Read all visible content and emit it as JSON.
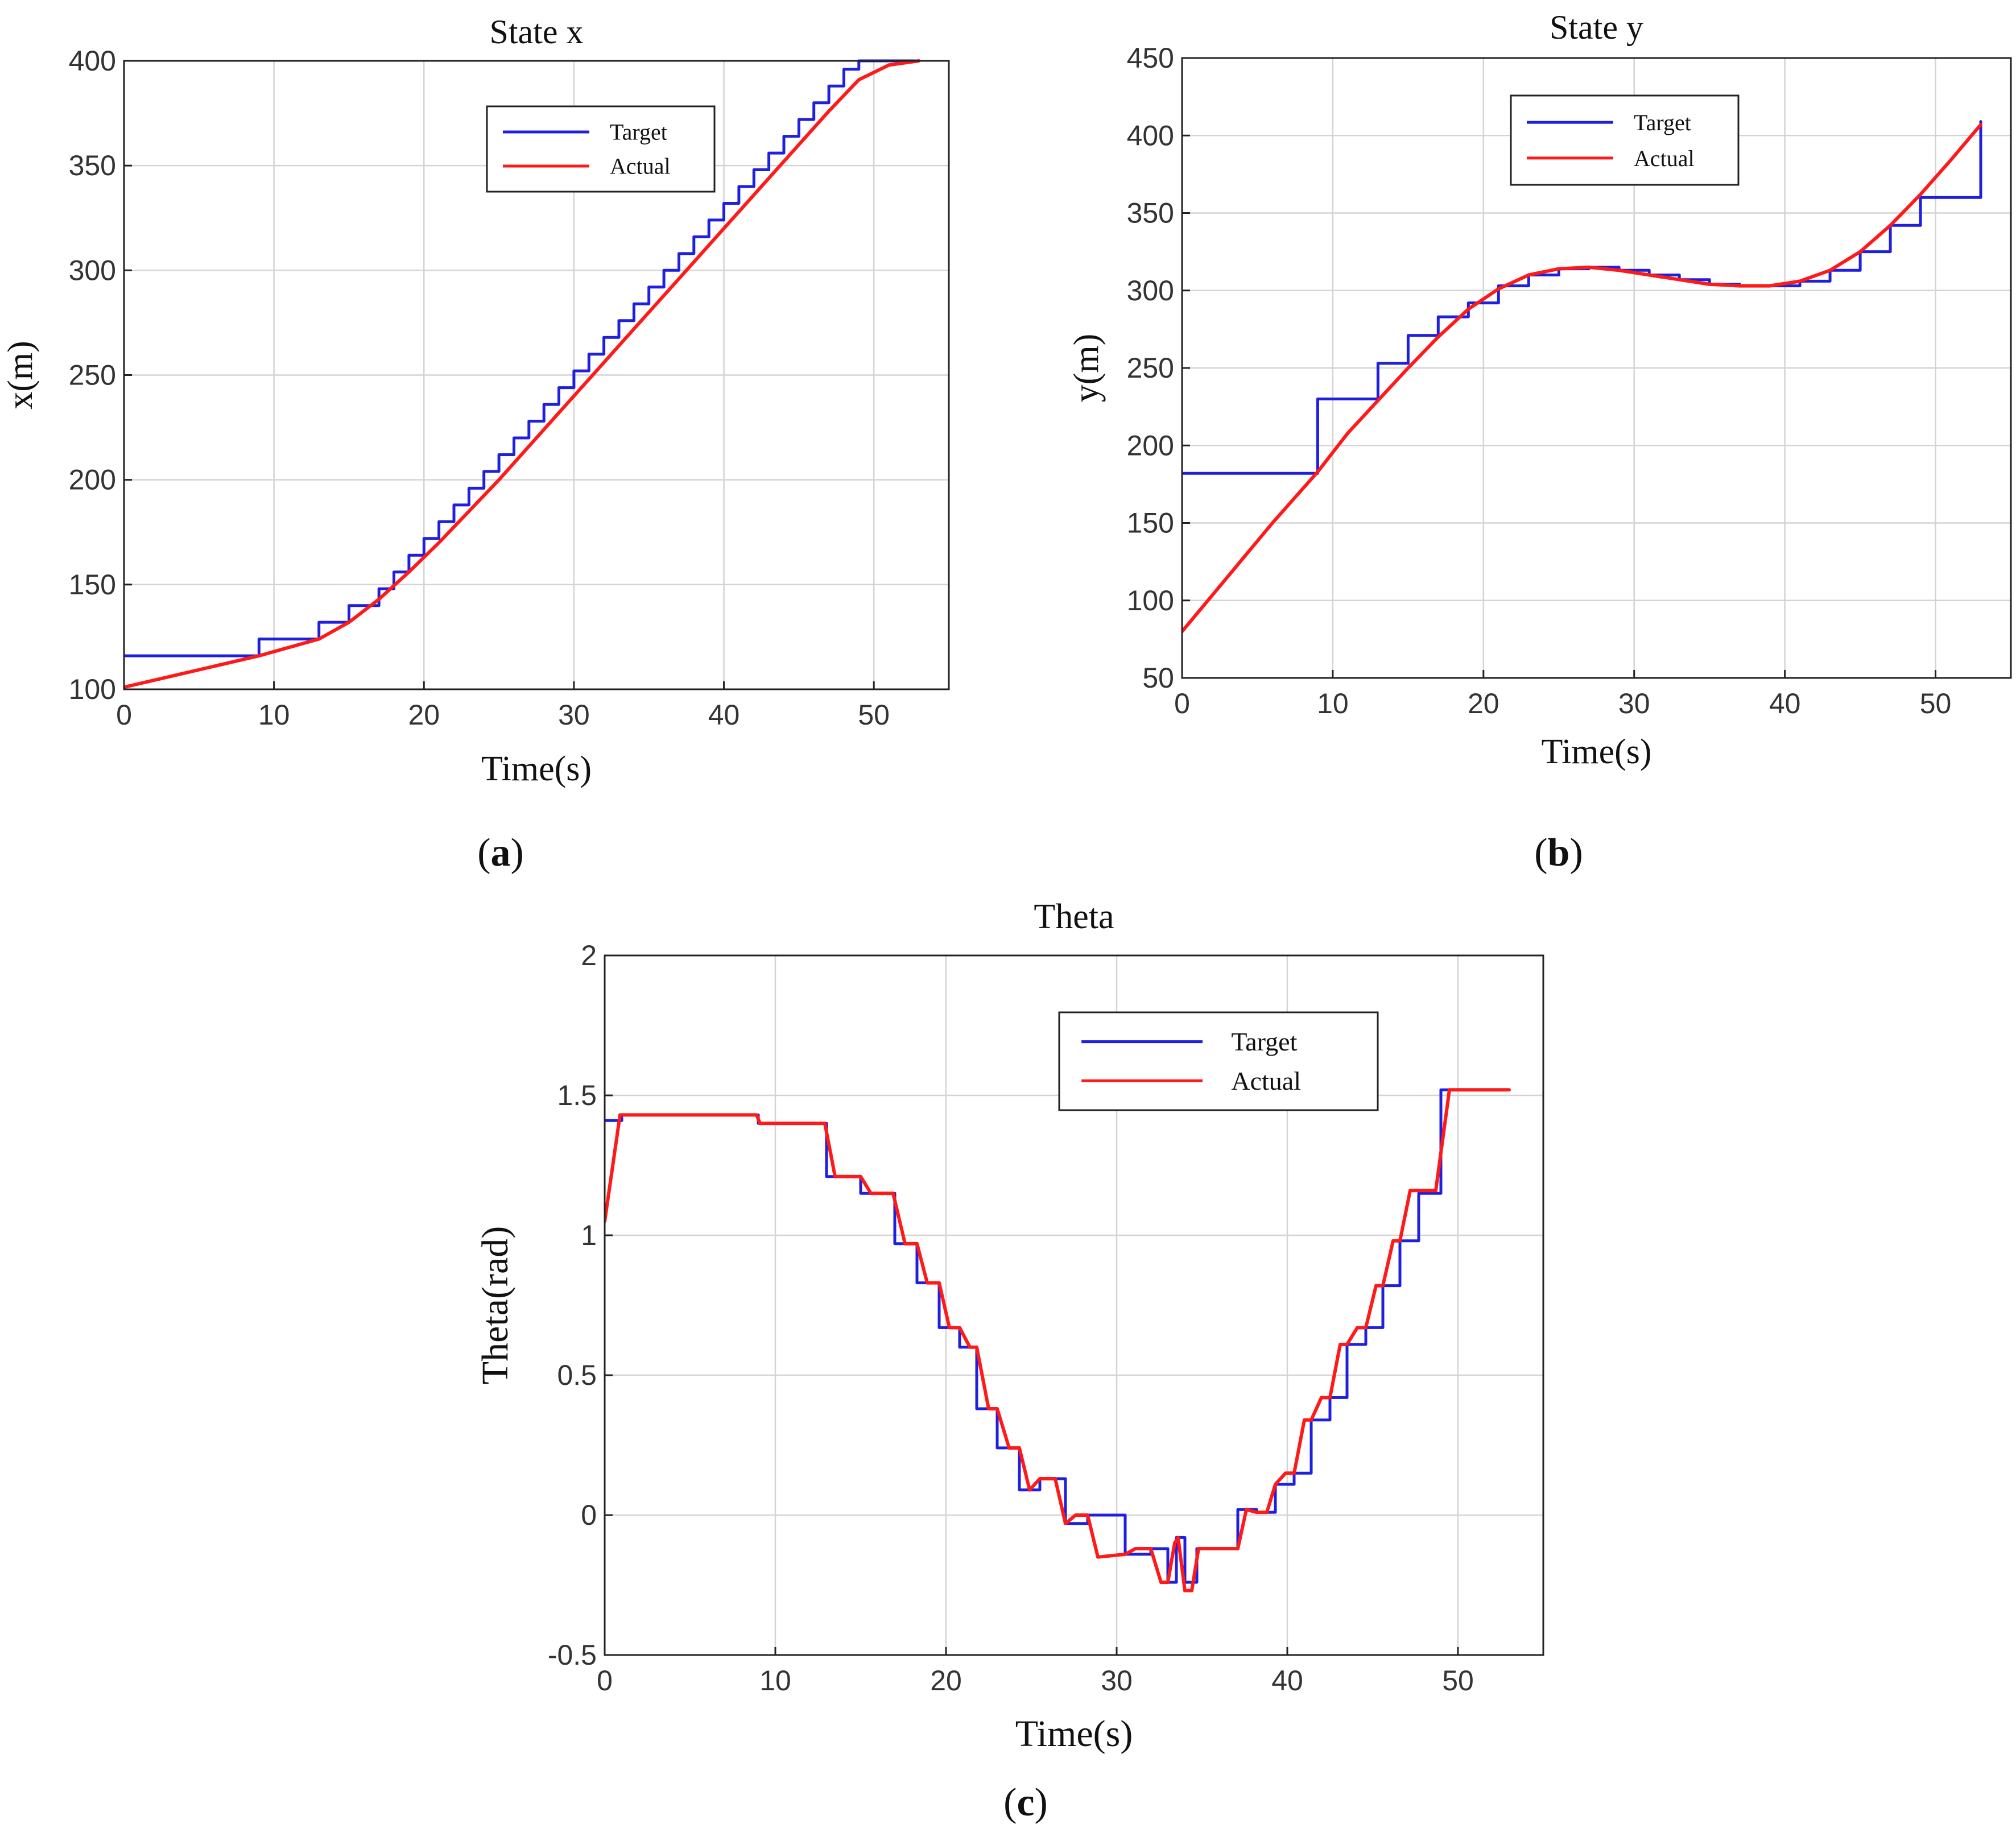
{
  "colors": {
    "target": "#1f1fe0",
    "actual": "#ff1a1a",
    "grid": "#d4d4d4",
    "axis": "#222222"
  },
  "chart_data": [
    {
      "type": "line",
      "panel_label": "a",
      "title": "State x",
      "xlabel": "Time(s)",
      "ylabel": "x(m)",
      "xlim": [
        0,
        55
      ],
      "ylim": [
        100,
        400
      ],
      "xticks": [
        "0",
        "10",
        "20",
        "30",
        "40",
        "50"
      ],
      "yticks": [
        "100",
        "150",
        "200",
        "250",
        "300",
        "350",
        "400"
      ],
      "grid": true,
      "legend": {
        "position": "top-center",
        "entries": [
          "Target",
          "Actual"
        ]
      },
      "series": [
        {
          "name": "Target",
          "step": true,
          "x": [
            0,
            9,
            13,
            15,
            17,
            18,
            19,
            20,
            21,
            22,
            23,
            24,
            25,
            26,
            27,
            28,
            29,
            30,
            31,
            32,
            33,
            34,
            35,
            36,
            37,
            38,
            39,
            40,
            41,
            42,
            43,
            44,
            45,
            46,
            47,
            48,
            49,
            50,
            53
          ],
          "y": [
            116,
            124,
            132,
            140,
            148,
            156,
            164,
            172,
            180,
            188,
            196,
            204,
            212,
            220,
            228,
            236,
            244,
            252,
            260,
            268,
            276,
            284,
            292,
            300,
            308,
            316,
            324,
            332,
            340,
            348,
            356,
            364,
            372,
            380,
            388,
            396,
            400,
            400,
            400
          ]
        },
        {
          "name": "Actual",
          "x": [
            0,
            3,
            6,
            9,
            11,
            13,
            15,
            17,
            19,
            21,
            23,
            25,
            27,
            29,
            31,
            33,
            35,
            37,
            39,
            41,
            43,
            45,
            47,
            49,
            51,
            53
          ],
          "y": [
            101,
            106,
            111,
            116,
            120,
            124,
            132,
            143,
            156,
            170,
            185,
            200,
            216,
            232,
            248,
            264,
            280,
            296,
            312,
            328,
            344,
            360,
            376,
            391,
            398,
            400
          ]
        }
      ]
    },
    {
      "type": "line",
      "panel_label": "b",
      "title": "State y",
      "xlabel": "Time(s)",
      "ylabel": "y(m)",
      "xlim": [
        0,
        55
      ],
      "ylim": [
        50,
        450
      ],
      "xticks": [
        "0",
        "10",
        "20",
        "30",
        "40",
        "50"
      ],
      "yticks": [
        "50",
        "100",
        "150",
        "200",
        "250",
        "300",
        "350",
        "400",
        "450"
      ],
      "grid": true,
      "legend": {
        "position": "top-center",
        "entries": [
          "Target",
          "Actual"
        ]
      },
      "series": [
        {
          "name": "Target",
          "step": true,
          "x": [
            0,
            9,
            13,
            15,
            17,
            19,
            21,
            23,
            25,
            27,
            29,
            31,
            33,
            35,
            37,
            39,
            41,
            43,
            45,
            47,
            49,
            53
          ],
          "y": [
            182,
            230,
            253,
            271,
            283,
            292,
            303,
            310,
            314,
            315,
            313,
            310,
            307,
            304,
            303,
            303,
            306,
            313,
            325,
            342,
            360,
            409
          ]
        },
        {
          "name": "Actual",
          "x": [
            0,
            3,
            6,
            9,
            11,
            13,
            15,
            17,
            19,
            21,
            23,
            25,
            27,
            29,
            31,
            33,
            35,
            37,
            39,
            41,
            43,
            45,
            47,
            49,
            51,
            53
          ],
          "y": [
            80,
            115,
            150,
            183,
            208,
            229,
            250,
            270,
            288,
            301,
            310,
            314,
            315,
            313,
            310,
            307,
            304,
            303,
            303,
            306,
            313,
            325,
            342,
            362,
            384,
            407
          ]
        }
      ]
    },
    {
      "type": "line",
      "panel_label": "c",
      "title": "Theta",
      "xlabel": "Time(s)",
      "ylabel": "Theta(rad)",
      "xlim": [
        0,
        55
      ],
      "ylim": [
        -0.5,
        2
      ],
      "xticks": [
        "0",
        "10",
        "20",
        "30",
        "40",
        "50"
      ],
      "yticks": [
        "-0.5",
        "0",
        "0.5",
        "1",
        "1.5",
        "2"
      ],
      "grid": true,
      "legend": {
        "position": "top-right",
        "entries": [
          "Target",
          "Actual"
        ]
      },
      "series": [
        {
          "name": "Target",
          "step": true,
          "x": [
            0,
            1,
            9,
            13,
            15,
            17,
            18.3,
            19.6,
            20.8,
            21.8,
            23,
            24.3,
            25.5,
            27,
            28.3,
            30.5,
            32,
            33,
            33.5,
            34,
            34.7,
            37.1,
            38.2,
            39.3,
            40.4,
            41.4,
            42.5,
            43.5,
            44.6,
            45.6,
            46.6,
            47.7,
            49,
            53
          ],
          "y": [
            1.41,
            1.43,
            1.4,
            1.21,
            1.15,
            0.97,
            0.83,
            0.67,
            0.6,
            0.38,
            0.24,
            0.09,
            0.13,
            -0.03,
            0.0,
            -0.14,
            -0.12,
            -0.24,
            -0.08,
            -0.24,
            -0.12,
            0.02,
            0.01,
            0.11,
            0.15,
            0.34,
            0.42,
            0.61,
            0.67,
            0.82,
            0.98,
            1.15,
            1.52,
            1.52
          ]
        },
        {
          "name": "Actual",
          "x": [
            0,
            0.9,
            8.9,
            9.1,
            12.9,
            13.5,
            15,
            15.6,
            16.9,
            17.6,
            18.3,
            18.9,
            19.6,
            20.2,
            20.8,
            21.4,
            21.8,
            22.5,
            23,
            23.7,
            24.3,
            24.9,
            25.5,
            26.4,
            27,
            27.6,
            28.3,
            28.9,
            30.5,
            31.1,
            32,
            32.6,
            33,
            33.4,
            33.6,
            34,
            34.4,
            34.8,
            37.1,
            37.6,
            38.2,
            38.8,
            39.3,
            39.9,
            40.4,
            41,
            41.4,
            42,
            42.5,
            43.1,
            43.5,
            44.1,
            44.6,
            45.2,
            45.6,
            46.2,
            46.6,
            47.2,
            47.7,
            48.7,
            49.5,
            53
          ],
          "y": [
            1.05,
            1.43,
            1.43,
            1.4,
            1.4,
            1.21,
            1.21,
            1.15,
            1.15,
            0.97,
            0.97,
            0.83,
            0.83,
            0.67,
            0.67,
            0.6,
            0.6,
            0.38,
            0.38,
            0.24,
            0.24,
            0.09,
            0.13,
            0.13,
            -0.03,
            0.0,
            0.0,
            -0.15,
            -0.14,
            -0.12,
            -0.12,
            -0.24,
            -0.24,
            -0.1,
            -0.08,
            -0.27,
            -0.27,
            -0.12,
            -0.12,
            0.02,
            0.01,
            0.01,
            0.11,
            0.15,
            0.15,
            0.34,
            0.34,
            0.42,
            0.42,
            0.61,
            0.61,
            0.67,
            0.67,
            0.82,
            0.82,
            0.98,
            0.98,
            1.16,
            1.16,
            1.16,
            1.52,
            1.52
          ]
        }
      ]
    }
  ]
}
